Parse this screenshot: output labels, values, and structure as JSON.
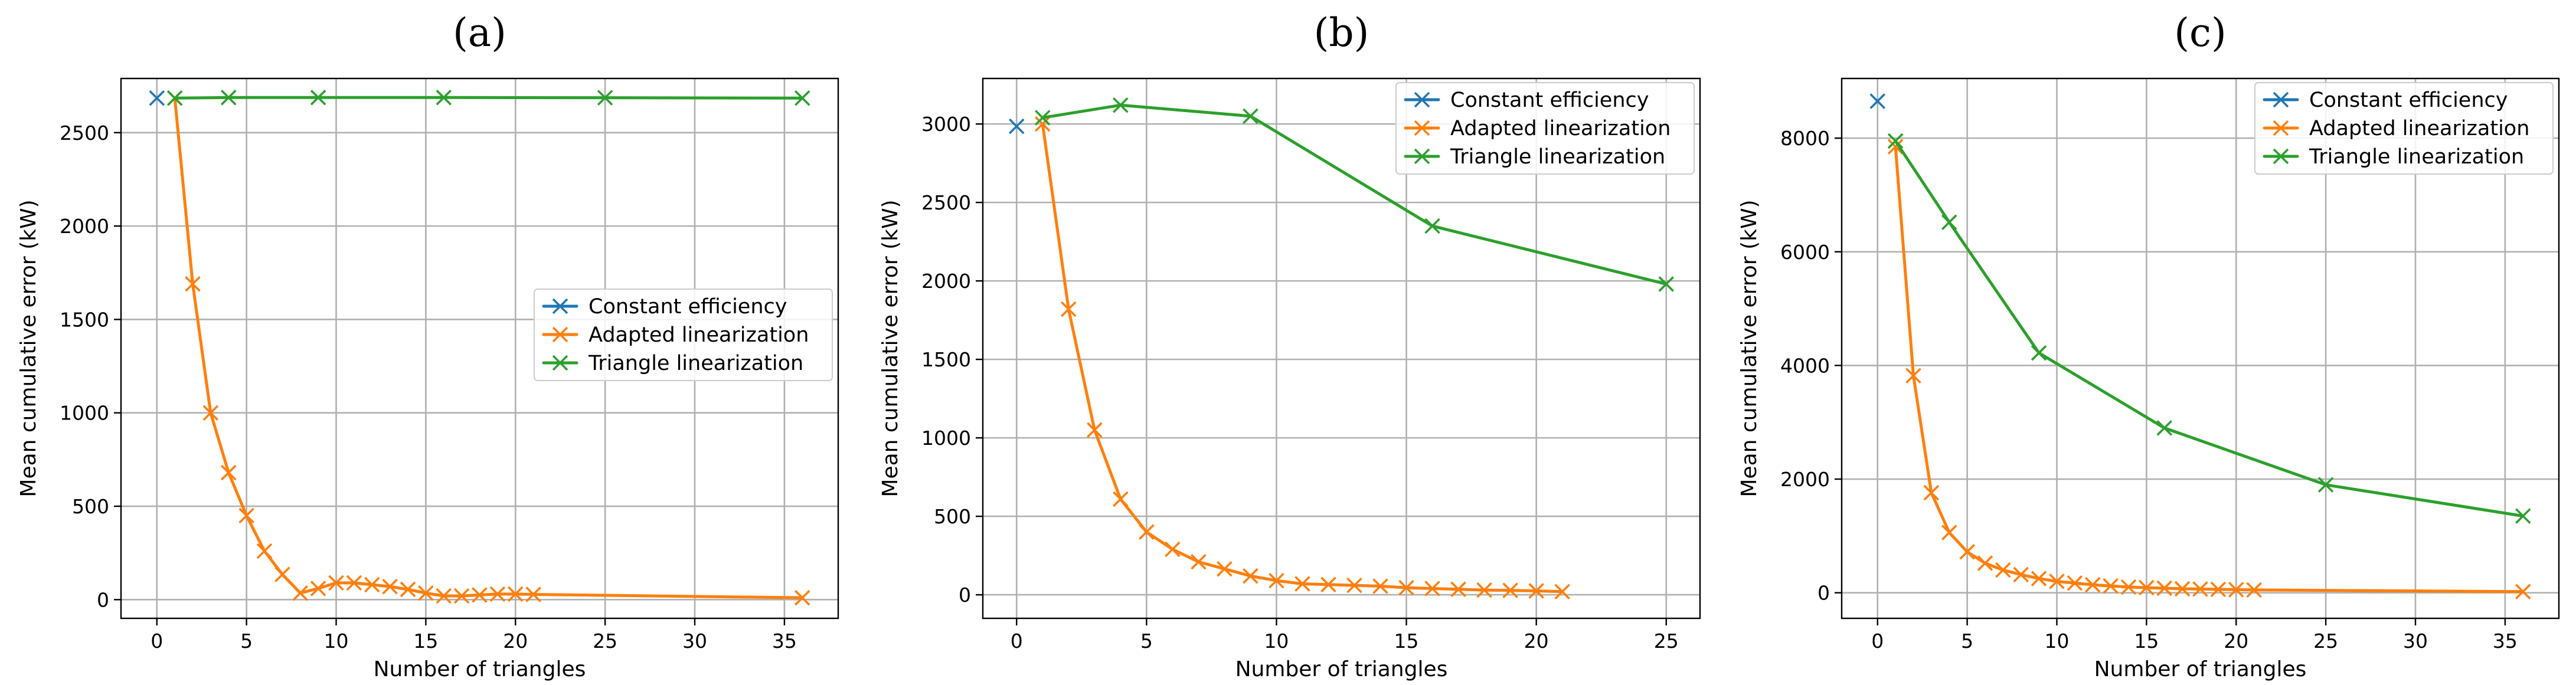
{
  "colors": {
    "constant": "#1f77b4",
    "adapted": "#ff7f0e",
    "triangle": "#2ca02c"
  },
  "chart_data": [
    {
      "type": "line",
      "title": "(a)",
      "xlabel": "Number of triangles",
      "ylabel": "Mean cumulative error (kW)",
      "xlim": [
        -2,
        38
      ],
      "ylim": [
        -100,
        2790
      ],
      "xticks": [
        0,
        5,
        10,
        15,
        20,
        25,
        30,
        35
      ],
      "yticks": [
        0,
        500,
        1000,
        1500,
        2000,
        2500
      ],
      "legend": "center-right",
      "series": [
        {
          "name": "Constant efficiency",
          "color_key": "constant",
          "x": [
            0
          ],
          "y": [
            2685
          ]
        },
        {
          "name": "Adapted linearization",
          "color_key": "adapted",
          "x": [
            1,
            2,
            3,
            4,
            5,
            6,
            7,
            8,
            9,
            10,
            11,
            12,
            13,
            14,
            15,
            16,
            17,
            18,
            19,
            20,
            21,
            36
          ],
          "y": [
            2685,
            1690,
            1000,
            680,
            450,
            260,
            135,
            35,
            60,
            90,
            90,
            80,
            70,
            55,
            35,
            20,
            20,
            25,
            30,
            30,
            28,
            10
          ]
        },
        {
          "name": "Triangle linearization",
          "color_key": "triangle",
          "x": [
            1,
            4,
            9,
            16,
            25,
            36
          ],
          "y": [
            2685,
            2688,
            2688,
            2688,
            2687,
            2685
          ]
        }
      ]
    },
    {
      "type": "line",
      "title": "(b)",
      "xlabel": "Number of triangles",
      "ylabel": "Mean cumulative error (kW)",
      "xlim": [
        -1.3,
        26.3
      ],
      "ylim": [
        -150,
        3290
      ],
      "xticks": [
        0,
        5,
        10,
        15,
        20,
        25
      ],
      "yticks": [
        0,
        500,
        1000,
        1500,
        2000,
        2500,
        3000
      ],
      "legend": "top-right",
      "series": [
        {
          "name": "Constant efficiency",
          "color_key": "constant",
          "x": [
            0
          ],
          "y": [
            2985
          ]
        },
        {
          "name": "Adapted linearization",
          "color_key": "adapted",
          "x": [
            1,
            2,
            3,
            4,
            5,
            6,
            7,
            8,
            9,
            10,
            11,
            12,
            13,
            14,
            15,
            16,
            17,
            18,
            19,
            20,
            21
          ],
          "y": [
            3000,
            1820,
            1050,
            610,
            400,
            290,
            210,
            165,
            120,
            90,
            70,
            65,
            60,
            55,
            45,
            40,
            35,
            30,
            28,
            25,
            20
          ]
        },
        {
          "name": "Triangle linearization",
          "color_key": "triangle",
          "x": [
            1,
            4,
            9,
            16,
            25
          ],
          "y": [
            3040,
            3120,
            3050,
            2350,
            1980
          ]
        }
      ]
    },
    {
      "type": "line",
      "title": "(c)",
      "xlabel": "Number of triangles",
      "ylabel": "Mean cumulative error (kW)",
      "xlim": [
        -2,
        38
      ],
      "ylim": [
        -450,
        9050
      ],
      "xticks": [
        0,
        5,
        10,
        15,
        20,
        25,
        30,
        35
      ],
      "yticks": [
        0,
        2000,
        4000,
        6000,
        8000
      ],
      "legend": "top-right",
      "series": [
        {
          "name": "Constant efficiency",
          "color_key": "constant",
          "x": [
            0
          ],
          "y": [
            8650
          ]
        },
        {
          "name": "Adapted linearization",
          "color_key": "adapted",
          "x": [
            1,
            2,
            3,
            4,
            5,
            6,
            7,
            8,
            9,
            10,
            11,
            12,
            13,
            14,
            15,
            16,
            17,
            18,
            19,
            20,
            21,
            36
          ],
          "y": [
            7850,
            3820,
            1760,
            1060,
            720,
            520,
            400,
            320,
            250,
            200,
            170,
            140,
            120,
            100,
            90,
            80,
            70,
            65,
            60,
            55,
            50,
            20
          ]
        },
        {
          "name": "Triangle linearization",
          "color_key": "triangle",
          "x": [
            1,
            4,
            9,
            16,
            25,
            36
          ],
          "y": [
            7950,
            6520,
            4220,
            2900,
            1900,
            1350
          ]
        }
      ]
    }
  ]
}
